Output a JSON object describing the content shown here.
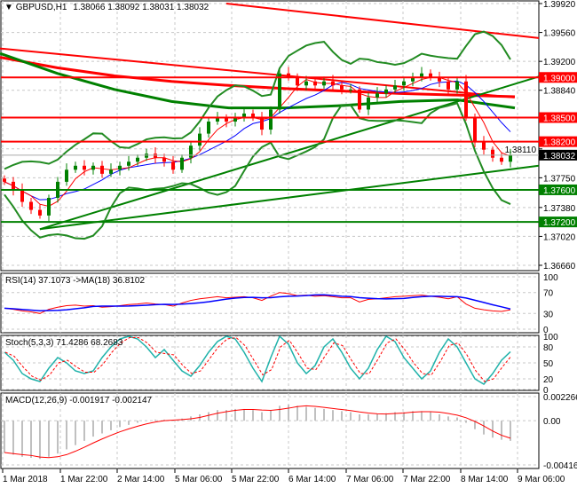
{
  "header": {
    "symbol": "GBPUSD,H1",
    "ohlc": "1.38066 1.38092 1.38031 1.38032"
  },
  "colors": {
    "bull": "#008000",
    "bear": "#ff0000",
    "level_red": "#ff0000",
    "level_green": "#008000",
    "rsi": "#ff0000",
    "rsi_ma": "#0000ff",
    "stoch_main": "#20b2aa",
    "stoch_signal": "#ff0000",
    "macd_hist": "#c0c0c0",
    "macd_signal": "#ff0000",
    "current_price_bg": "#000000"
  },
  "chart_data": [
    {
      "type": "candlestick",
      "title": "GBPUSD,H1",
      "ylim": [
        1.3666,
        1.3992
      ],
      "yticks": [
        "1.39920",
        "1.39560",
        "1.39200",
        "1.38840",
        "1.38110",
        "1.37750",
        "1.37380",
        "1.37020",
        "1.36660"
      ],
      "xticks": [
        "1 Mar 2018",
        "1 Mar 22:00",
        "2 Mar 14:00",
        "5 Mar 06:00",
        "5 Mar 22:00",
        "6 Mar 14:00",
        "7 Mar 06:00",
        "7 Mar 22:00",
        "8 Mar 14:00",
        "9 Mar 06:00"
      ],
      "closes": [
        1.377,
        1.376,
        1.3745,
        1.3735,
        1.3728,
        1.375,
        1.377,
        1.3785,
        1.379,
        1.3785,
        1.379,
        1.378,
        1.3785,
        1.379,
        1.3795,
        1.38,
        1.3805,
        1.38,
        1.3795,
        1.3785,
        1.38,
        1.3815,
        1.383,
        1.3845,
        1.385,
        1.3845,
        1.385,
        1.3855,
        1.385,
        1.3835,
        1.386,
        1.3905,
        1.39,
        1.389,
        1.3895,
        1.389,
        1.3895,
        1.389,
        1.3885,
        1.3885,
        1.386,
        1.3875,
        1.388,
        1.3885,
        1.389,
        1.3895,
        1.39,
        1.3905,
        1.39,
        1.3895,
        1.3885,
        1.3895,
        1.385,
        1.382,
        1.381,
        1.38,
        1.3795,
        1.3803
      ],
      "levels": [
        {
          "price": "1.39000",
          "color": "red"
        },
        {
          "price": "1.38500",
          "color": "red"
        },
        {
          "price": "1.38200",
          "color": "red"
        },
        {
          "price": "1.37600",
          "color": "green"
        },
        {
          "price": "1.37200",
          "color": "green"
        }
      ],
      "current_price": "1.38032",
      "trendlines": [
        {
          "color": "red",
          "from": [
            0.42,
            1.3992
          ],
          "to": [
            1.0,
            1.3949
          ]
        },
        {
          "color": "red",
          "from": [
            0,
            1.3936
          ],
          "to": [
            0.955,
            1.3875
          ]
        },
        {
          "color": "green",
          "from": [
            0.074,
            1.3711
          ],
          "to": [
            1.0,
            1.379
          ]
        },
        {
          "color": "green",
          "from": [
            0.074,
            1.3711
          ],
          "to": [
            1.0,
            1.3901
          ]
        }
      ],
      "long_ma_red": [
        1.3925,
        1.3912,
        1.3902,
        1.3895,
        1.389,
        1.3886,
        1.3883,
        1.388,
        1.3878,
        1.3876
      ],
      "long_ma_green": [
        1.393,
        1.3905,
        1.3885,
        1.387,
        1.3862,
        1.3862,
        1.3865,
        1.387,
        1.3872,
        1.3862
      ]
    },
    {
      "type": "line",
      "title": "RSI(14) 37.1073 ->MA(18) 36.8102",
      "ylim": [
        0,
        100
      ],
      "yticks": [
        "100",
        "70",
        "30",
        "0"
      ],
      "values": [
        40,
        38,
        35,
        33,
        30,
        38,
        42,
        45,
        46,
        44,
        45,
        42,
        43,
        45,
        47,
        48,
        50,
        48,
        47,
        44,
        50,
        55,
        58,
        60,
        62,
        60,
        61,
        62,
        60,
        55,
        63,
        70,
        68,
        64,
        65,
        63,
        64,
        62,
        60,
        60,
        52,
        57,
        58,
        60,
        62,
        63,
        64,
        65,
        63,
        61,
        58,
        62,
        48,
        40,
        37,
        35,
        34,
        37
      ]
    },
    {
      "type": "line",
      "title": "Stoch(5,3,3) 71.4286 68.2683",
      "ylim": [
        0,
        100
      ],
      "yticks": [
        "100",
        "80",
        "50",
        "20",
        "0"
      ],
      "values": [
        70,
        55,
        30,
        20,
        15,
        40,
        60,
        50,
        35,
        30,
        35,
        60,
        80,
        95,
        100,
        95,
        80,
        60,
        75,
        55,
        35,
        25,
        45,
        70,
        90,
        100,
        95,
        70,
        40,
        15,
        60,
        100,
        85,
        50,
        30,
        45,
        80,
        95,
        70,
        40,
        20,
        40,
        75,
        100,
        90,
        60,
        40,
        20,
        35,
        70,
        95,
        80,
        50,
        20,
        10,
        30,
        55,
        71
      ]
    },
    {
      "type": "bar",
      "title": "MACD(12,26,9) -0.001917 -0.002147",
      "ylim": [
        -0.004168,
        0.002266
      ],
      "yticks": [
        "0.002266",
        "0.00",
        "-0.004168"
      ],
      "values": [
        -0.003,
        -0.0032,
        -0.0034,
        -0.0035,
        -0.0036,
        -0.0034,
        -0.0031,
        -0.0027,
        -0.0023,
        -0.0019,
        -0.0015,
        -0.0012,
        -0.0009,
        -0.0006,
        -0.0004,
        -0.0002,
        0.0,
        0.0001,
        0.0001,
        0.0,
        0.0002,
        0.0004,
        0.0006,
        0.0008,
        0.001,
        0.001,
        0.0011,
        0.0011,
        0.001,
        0.0008,
        0.001,
        0.0014,
        0.0015,
        0.0014,
        0.0013,
        0.0012,
        0.0011,
        0.001,
        0.0009,
        0.0008,
        0.0006,
        0.0006,
        0.0006,
        0.0007,
        0.0008,
        0.0008,
        0.0009,
        0.0009,
        0.0008,
        0.0006,
        0.0004,
        0.0003,
        -0.0002,
        -0.0008,
        -0.0013,
        -0.0016,
        -0.0018,
        -0.0019
      ]
    }
  ]
}
